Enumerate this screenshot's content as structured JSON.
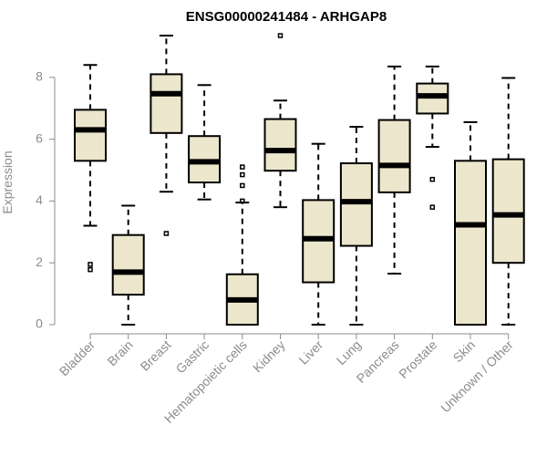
{
  "chart_data": {
    "type": "boxplot",
    "title": "ENSG00000241484 - ARHGAP8",
    "xlabel": "",
    "ylabel": "Expression",
    "ylim": [
      0,
      9.5
    ],
    "yticks": [
      0,
      2,
      4,
      6,
      8
    ],
    "colors": {
      "box_fill": "#ece6cc",
      "axis": "#8c8c8c",
      "line": "#000000"
    },
    "categories": [
      "Bladder",
      "Brain",
      "Breast",
      "Gastric",
      "Hematopoietic cells",
      "Kidney",
      "Liver",
      "Lung",
      "Pancreas",
      "Prostate",
      "Skin",
      "Unknown / Other"
    ],
    "boxes": [
      {
        "name": "Bladder",
        "whislo": 3.2,
        "q1": 5.3,
        "med": 6.3,
        "q3": 6.95,
        "whishi": 8.4,
        "fliers": [
          1.95,
          1.78
        ]
      },
      {
        "name": "Brain",
        "whislo": 0.0,
        "q1": 0.97,
        "med": 1.7,
        "q3": 2.9,
        "whishi": 3.85,
        "fliers": []
      },
      {
        "name": "Breast",
        "whislo": 4.3,
        "q1": 6.2,
        "med": 7.47,
        "q3": 8.1,
        "whishi": 9.35,
        "fliers": [
          2.95
        ]
      },
      {
        "name": "Gastric",
        "whislo": 4.05,
        "q1": 4.6,
        "med": 5.27,
        "q3": 6.1,
        "whishi": 7.75,
        "fliers": []
      },
      {
        "name": "Hematopoietic cells",
        "whislo": 0.0,
        "q1": 0.0,
        "med": 0.8,
        "q3": 1.63,
        "whishi": 3.95,
        "fliers": [
          4.0,
          4.5,
          4.85,
          5.1
        ]
      },
      {
        "name": "Kidney",
        "whislo": 3.8,
        "q1": 4.98,
        "med": 5.63,
        "q3": 6.65,
        "whishi": 7.25,
        "fliers": [
          9.35
        ]
      },
      {
        "name": "Liver",
        "whislo": 0.0,
        "q1": 1.37,
        "med": 2.78,
        "q3": 4.03,
        "whishi": 5.85,
        "fliers": []
      },
      {
        "name": "Lung",
        "whislo": 0.0,
        "q1": 2.55,
        "med": 3.98,
        "q3": 5.22,
        "whishi": 6.4,
        "fliers": []
      },
      {
        "name": "Pancreas",
        "whislo": 1.65,
        "q1": 4.28,
        "med": 5.15,
        "q3": 6.62,
        "whishi": 8.35,
        "fliers": []
      },
      {
        "name": "Prostate",
        "whislo": 5.75,
        "q1": 6.83,
        "med": 7.4,
        "q3": 7.8,
        "whishi": 8.35,
        "fliers": [
          4.7,
          3.8
        ]
      },
      {
        "name": "Skin",
        "whislo": 0.0,
        "q1": 0.0,
        "med": 3.23,
        "q3": 5.3,
        "whishi": 6.55,
        "fliers": []
      },
      {
        "name": "Unknown / Other",
        "whislo": 0.0,
        "q1": 2.0,
        "med": 3.55,
        "q3": 5.35,
        "whishi": 7.98,
        "fliers": []
      }
    ]
  }
}
